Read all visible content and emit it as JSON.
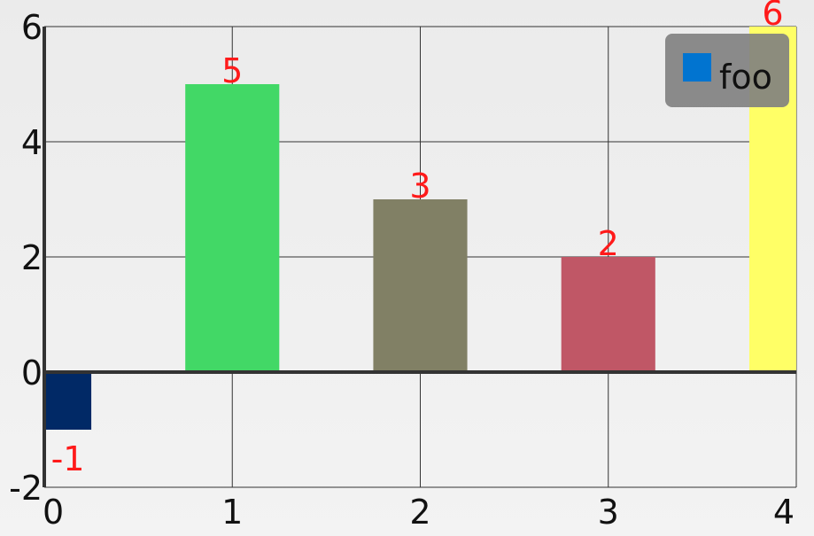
{
  "chart_data": {
    "type": "bar",
    "x": [
      0,
      1,
      2,
      3,
      4
    ],
    "values": [
      -1,
      5,
      3,
      2,
      6
    ],
    "data_labels": [
      "-1",
      "5",
      "3",
      "2",
      "6"
    ],
    "bar_colors": [
      "#012966",
      "#42d866",
      "#818065",
      "#c05766",
      "#ffff66"
    ],
    "xlim": [
      0,
      4
    ],
    "ylim": [
      -2,
      6
    ],
    "x_ticks": [
      "0",
      "1",
      "2",
      "3",
      "4"
    ],
    "y_ticks": [
      "-2",
      "0",
      "2",
      "4",
      "6"
    ],
    "grid": true,
    "legend": {
      "position": "top-right",
      "entries": [
        {
          "label": "foo",
          "color": "#0174d0"
        }
      ]
    },
    "data_label_color": "#ff1a1a"
  }
}
